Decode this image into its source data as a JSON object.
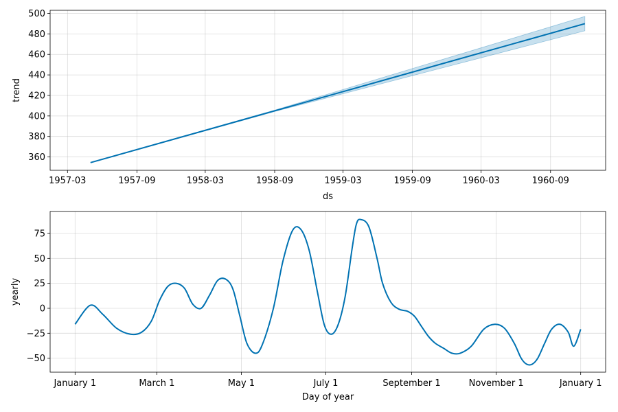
{
  "chart_data": [
    {
      "type": "line",
      "xlabel": "ds",
      "ylabel": "trend",
      "x_ticks": [
        "1957-03",
        "1957-09",
        "1958-03",
        "1958-09",
        "1959-03",
        "1959-09",
        "1960-03",
        "1960-09"
      ],
      "y_ticks": [
        "360",
        "380",
        "400",
        "420",
        "440",
        "460",
        "480",
        "500"
      ],
      "xlim": [
        "1957-01-14",
        "1961-01-25"
      ],
      "ylim": [
        347,
        503
      ],
      "grid": true,
      "line_color": "#0072B2",
      "band_color": "#0072B2",
      "series": [
        {
          "x": [
            "1957-05-01",
            "1960-12-01"
          ],
          "y": [
            354.5,
            490
          ],
          "lower": [
            354.5,
            483
          ],
          "upper": [
            354.5,
            497
          ]
        }
      ]
    },
    {
      "type": "line",
      "xlabel": "Day of year",
      "ylabel": "yearly",
      "x_ticks": [
        "January 1",
        "March 1",
        "May 1",
        "July 1",
        "September 1",
        "November 1",
        "January 1"
      ],
      "y_ticks": [
        "75",
        "50",
        "25",
        "0",
        "−25",
        "−50"
      ],
      "xlim": [
        -18,
        383
      ],
      "ylim": [
        -64,
        97
      ],
      "grid": true,
      "line_color": "#0072B2",
      "series": [
        {
          "x": [
            0,
            11,
            20,
            30,
            40,
            48,
            55,
            61,
            67,
            73,
            79,
            85,
            91,
            97,
            103,
            109,
            114,
            119,
            124,
            130,
            135,
            143,
            150,
            157,
            163,
            169,
            175,
            180,
            185,
            190,
            195,
            200,
            203,
            206,
            212,
            218,
            222,
            228,
            234,
            240,
            245,
            250,
            255,
            260,
            266,
            272,
            278,
            286,
            295,
            303,
            310,
            317,
            322,
            326,
            330,
            334,
            339,
            344,
            350,
            356,
            360,
            365
          ],
          "y": [
            -16,
            3,
            -6,
            -20,
            -26,
            -24,
            -13,
            8,
            22,
            25,
            20,
            4,
            0,
            13,
            28,
            29,
            19,
            -8,
            -35,
            -45,
            -37,
            -1,
            47,
            78,
            79,
            58,
            16,
            -17,
            -26,
            -16,
            12,
            60,
            84,
            89,
            82,
            50,
            25,
            6,
            -1,
            -3,
            -8,
            -18,
            -28,
            -35,
            -40,
            -45,
            -45,
            -38,
            -21,
            -16,
            -20,
            -35,
            -50,
            -56,
            -56,
            -50,
            -35,
            -21,
            -16,
            -24,
            -38,
            -21
          ]
        }
      ]
    }
  ]
}
